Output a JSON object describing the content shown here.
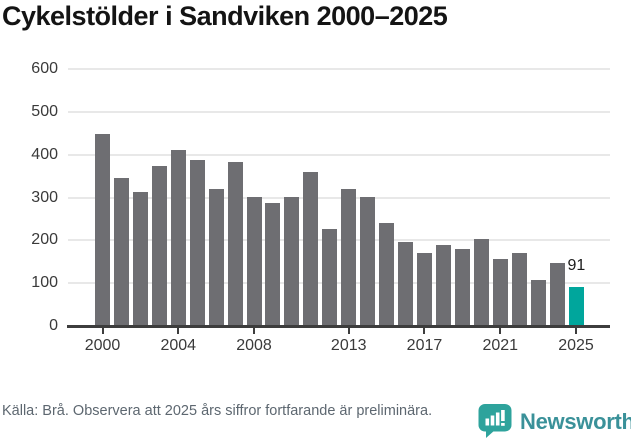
{
  "header": {
    "title": "Cykelstölder i Sandviken 2000–2025"
  },
  "chart_data": {
    "type": "bar",
    "title": "Cykelstölder i Sandviken 2000–2025",
    "categories": [
      "2000",
      "2001",
      "2002",
      "2003",
      "2004",
      "2005",
      "2006",
      "2007",
      "2008",
      "2009",
      "2010",
      "2011",
      "2012",
      "2013",
      "2014",
      "2015",
      "2016",
      "2017",
      "2018",
      "2019",
      "2020",
      "2021",
      "2022",
      "2023",
      "2024",
      "2025"
    ],
    "values": [
      449,
      345,
      313,
      374,
      410,
      387,
      320,
      384,
      301,
      287,
      301,
      360,
      226,
      320,
      300,
      240,
      196,
      170,
      189,
      179,
      202,
      156,
      170,
      107,
      148,
      91
    ],
    "xlabel": "",
    "ylabel": "",
    "ylim": [
      0,
      600
    ],
    "yticks": [
      0,
      100,
      200,
      300,
      400,
      500,
      600
    ],
    "xtick_labels": [
      "2000",
      "2004",
      "2008",
      "2013",
      "2017",
      "2021",
      "2025"
    ],
    "grid": true,
    "legend": "none",
    "bar_color": "#6e6e72",
    "highlight": {
      "category": "2025",
      "color": "#00a69c",
      "data_label": "91"
    },
    "axis_color": "#3d3d3d",
    "grid_color": "#e8e8e8"
  },
  "footer": {
    "source_note": "Källa: Brå. Observera att 2025 års siffror fortfarande är preliminära.",
    "brand": {
      "name": "Newsworthy",
      "icon": "bar-chart-speech-bubble-icon",
      "icon_color": "#2ea39c",
      "text_color": "#3a9199"
    }
  }
}
